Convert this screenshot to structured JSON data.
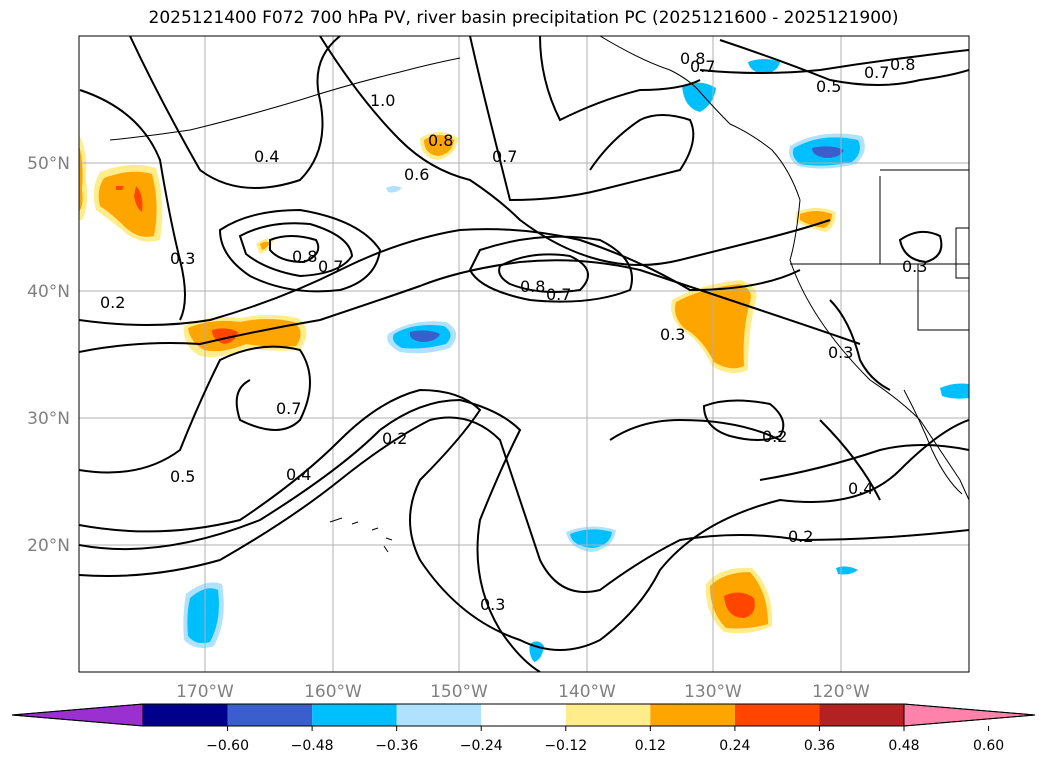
{
  "title": "2025121400 F072 700 hPa PV, river basin precipitation PC (2025121600 - 2025121900)",
  "latitude_labels": [
    "50°N",
    "40°N",
    "30°N",
    "20°N"
  ],
  "longitude_labels": [
    "170°W",
    "160°W",
    "150°W",
    "140°W",
    "130°W",
    "120°W"
  ],
  "contour_labels": [
    "0.8",
    "0.7",
    "0.7",
    "0.8",
    "0.5",
    "1.0",
    "0.8",
    "0.4",
    "0.6",
    "0.7",
    "0.8",
    "0.7",
    "0.3",
    "0.2",
    "0.8",
    "0.7",
    "0.3",
    "0.3",
    "0.3",
    "0.7",
    "0.2",
    "0.2",
    "0.5",
    "0.4",
    "0.4",
    "0.2",
    "0.3"
  ],
  "colorbar": {
    "ticks": [
      "−0.60",
      "−0.48",
      "−0.36",
      "−0.24",
      "−0.12",
      "0.12",
      "0.24",
      "0.36",
      "0.48",
      "0.60"
    ],
    "colors": [
      "#9b30d0",
      "#00008b",
      "#3a5fcd",
      "#00bfff",
      "#b0e2ff",
      "#ffffff",
      "#ffec8b",
      "#ffa500",
      "#ff4500",
      "#b22222",
      "#ff82ab"
    ]
  },
  "colors": {
    "orange": "#ffa500",
    "red_orange": "#ff4500",
    "light_yellow": "#ffec8b",
    "deep_sky_blue": "#00bfff",
    "light_blue": "#b0e2ff",
    "royal_blue": "#3a5fcd",
    "purple": "#9b30d0"
  }
}
